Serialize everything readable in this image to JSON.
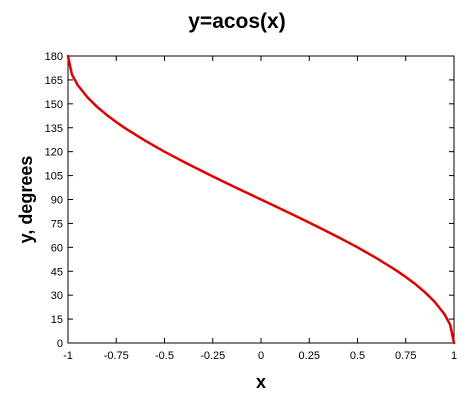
{
  "chart_data": {
    "type": "line",
    "title": "y=acos(x)",
    "xlabel": "x",
    "ylabel": "y, degrees",
    "xlim": [
      -1,
      1
    ],
    "ylim": [
      0,
      180
    ],
    "x_ticks": [
      -1,
      -0.75,
      -0.5,
      -0.25,
      0,
      0.25,
      0.5,
      0.75,
      1
    ],
    "x_tick_labels": [
      "-1",
      "-0.75",
      "-0.5",
      "-0.25",
      "0",
      "0.25",
      "0.5",
      "0.75",
      "1"
    ],
    "y_ticks": [
      0,
      15,
      30,
      45,
      60,
      75,
      90,
      105,
      120,
      135,
      150,
      165,
      180
    ],
    "y_tick_labels": [
      "0",
      "15",
      "30",
      "45",
      "60",
      "75",
      "90",
      "105",
      "120",
      "135",
      "150",
      "165",
      "180"
    ],
    "grid": false,
    "series": [
      {
        "color": "#e00000",
        "x": [
          -1,
          -0.98,
          -0.95,
          -0.9,
          -0.85,
          -0.8,
          -0.75,
          -0.7,
          -0.6,
          -0.5,
          -0.4,
          -0.3,
          -0.2,
          -0.1,
          0,
          0.1,
          0.2,
          0.3,
          0.4,
          0.5,
          0.6,
          0.7,
          0.75,
          0.8,
          0.85,
          0.9,
          0.95,
          0.98,
          1
        ],
        "y": [
          180,
          168.5,
          161.8,
          154.2,
          148.2,
          143.1,
          138.6,
          134.4,
          126.9,
          120,
          113.6,
          107.5,
          101.5,
          95.7,
          90,
          84.3,
          78.5,
          72.5,
          66.4,
          60,
          53.1,
          45.6,
          41.4,
          36.9,
          31.8,
          25.8,
          18.2,
          11.5,
          0
        ]
      }
    ]
  }
}
